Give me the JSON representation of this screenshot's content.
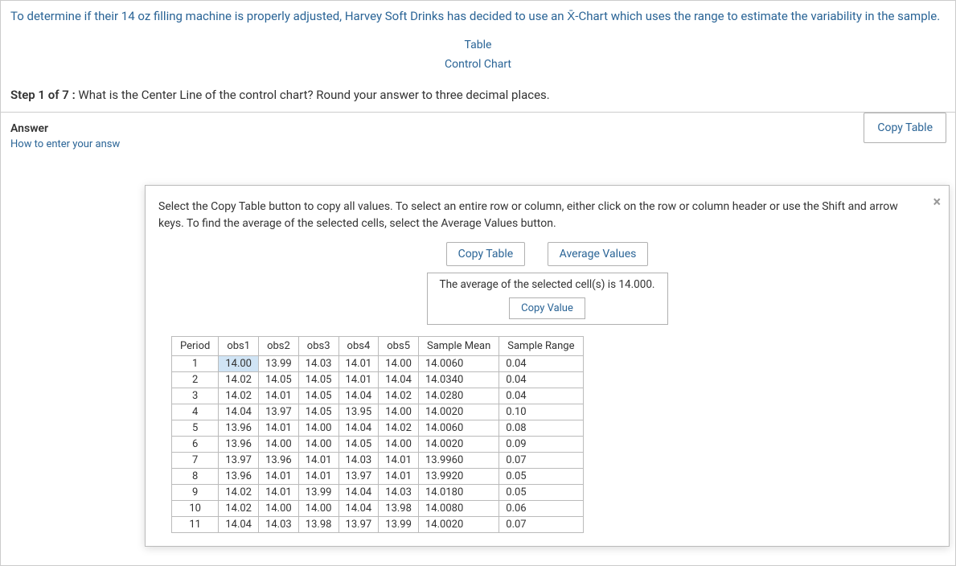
{
  "question": {
    "prefix": "To determine if their ",
    "oz": "14",
    "mid": " oz filling machine is properly adjusted, Harvey Soft Drinks has decided to use an ",
    "chart_label": "-Chart which uses the range to estimate the variability in the sample."
  },
  "links": {
    "table": "Table",
    "control_chart": "Control Chart"
  },
  "buttons": {
    "copy_table_outer": "Copy Table"
  },
  "step": {
    "label": "Step 1 of 7 :",
    "text": " What is the Center Line of the control chart? Round your answer to three decimal places."
  },
  "answer_panel": {
    "title": "Answer",
    "hint": "How to enter your answ"
  },
  "modal": {
    "instructions": "Select the Copy Table button to copy all values. To select an entire row or column, either click on the row or column header or use the Shift and arrow keys. To find the average of the selected cells, select the Average Values button.",
    "copy_table": "Copy Table",
    "average_values": "Average Values",
    "avg_text_prefix": "The average of the selected cell(s) is ",
    "avg_value": "14.000",
    "avg_text_suffix": ".",
    "copy_value": "Copy Value",
    "close": "×"
  },
  "table": {
    "columns": [
      "Period",
      "obs1",
      "obs2",
      "obs3",
      "obs4",
      "obs5",
      "Sample Mean",
      "Sample Range"
    ],
    "rows": [
      [
        "1",
        "14.00",
        "13.99",
        "14.03",
        "14.01",
        "14.00",
        "14.0060",
        "0.04"
      ],
      [
        "2",
        "14.02",
        "14.05",
        "14.05",
        "14.01",
        "14.04",
        "14.0340",
        "0.04"
      ],
      [
        "3",
        "14.02",
        "14.01",
        "14.05",
        "14.04",
        "14.02",
        "14.0280",
        "0.04"
      ],
      [
        "4",
        "14.04",
        "13.97",
        "14.05",
        "13.95",
        "14.00",
        "14.0020",
        "0.10"
      ],
      [
        "5",
        "13.96",
        "14.01",
        "14.00",
        "14.04",
        "14.02",
        "14.0060",
        "0.08"
      ],
      [
        "6",
        "13.96",
        "14.00",
        "14.00",
        "14.05",
        "14.00",
        "14.0020",
        "0.09"
      ],
      [
        "7",
        "13.97",
        "13.96",
        "14.01",
        "14.03",
        "14.01",
        "13.9960",
        "0.07"
      ],
      [
        "8",
        "13.96",
        "14.01",
        "14.01",
        "13.97",
        "14.01",
        "13.9920",
        "0.05"
      ],
      [
        "9",
        "14.02",
        "14.01",
        "13.99",
        "14.04",
        "14.03",
        "14.0180",
        "0.05"
      ],
      [
        "10",
        "14.02",
        "14.00",
        "14.00",
        "14.04",
        "13.98",
        "14.0080",
        "0.06"
      ],
      [
        "11",
        "14.04",
        "14.03",
        "13.98",
        "13.97",
        "13.99",
        "14.0020",
        "0.07"
      ]
    ],
    "selected": {
      "row": 0,
      "col": 1
    }
  },
  "colors": {
    "link": "#2a6496",
    "border": "#b0b0b0",
    "selected_bg": "#d0e4f5"
  }
}
